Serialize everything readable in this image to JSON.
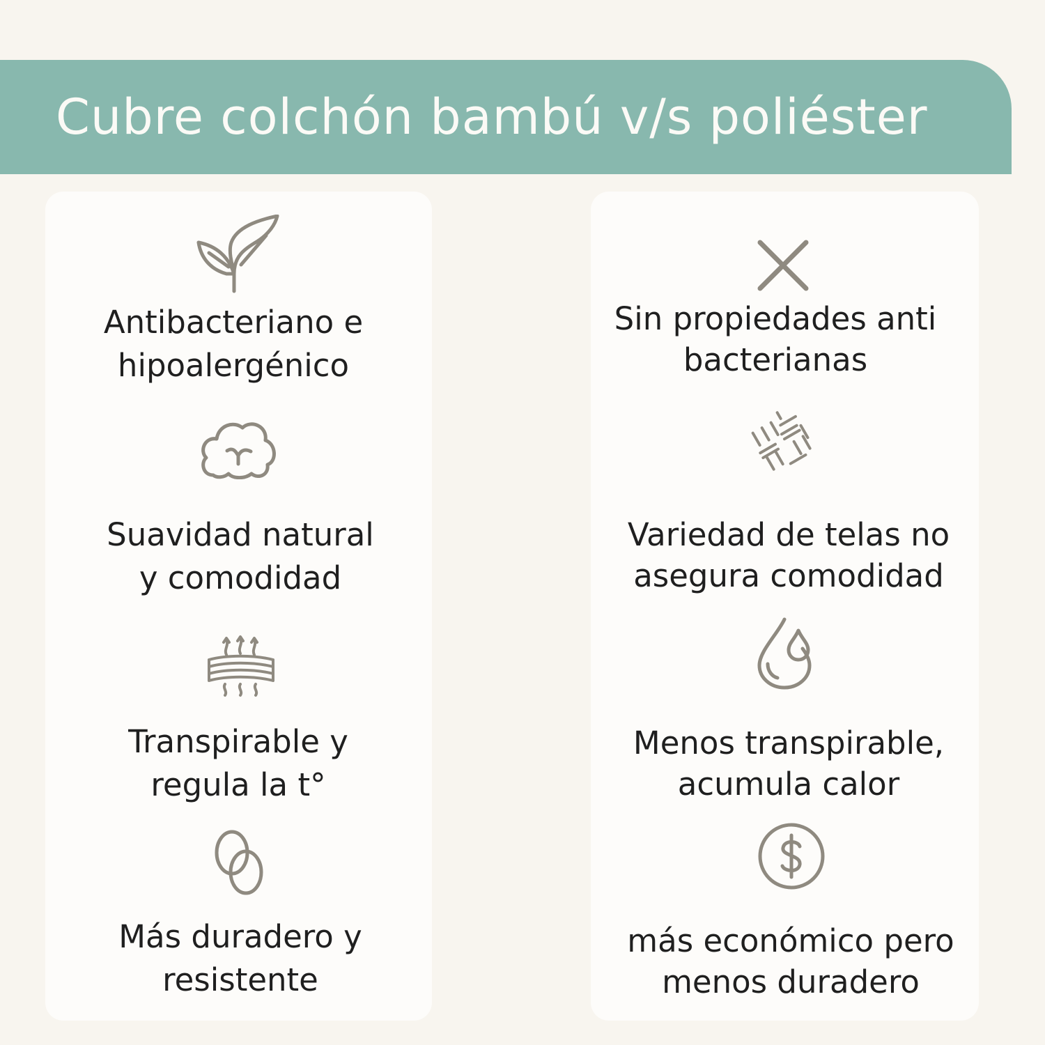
{
  "title": "Cubre colchón bambú v/s poliéster",
  "colors": {
    "banner": "#88b8ae",
    "background": "#f8f5ef",
    "icons": "#8f8a80"
  },
  "bamboo": [
    {
      "icon": "leaf-icon",
      "lines": [
        "Antibacteriano e",
        "hipoalergénico"
      ]
    },
    {
      "icon": "cotton-cloud-icon",
      "lines": [
        "Suavidad natural",
        "y comodidad"
      ]
    },
    {
      "icon": "breathable-layers-icon",
      "lines": [
        "Transpirable y",
        "regula la t°"
      ]
    },
    {
      "icon": "linked-rings-icon",
      "lines": [
        "Más duradero y",
        "resistente"
      ]
    }
  ],
  "polyester": [
    {
      "icon": "x-icon",
      "lines": [
        "Sin propiedades anti",
        "bacterianas"
      ]
    },
    {
      "icon": "fabric-weave-icon",
      "lines": [
        "Variedad de telas no",
        "asegura comodidad"
      ]
    },
    {
      "icon": "water-drops-icon",
      "lines": [
        "Menos transpirable,",
        "acumula calor"
      ]
    },
    {
      "icon": "dollar-coin-icon",
      "lines": [
        "más económico pero",
        "menos duradero"
      ]
    }
  ]
}
